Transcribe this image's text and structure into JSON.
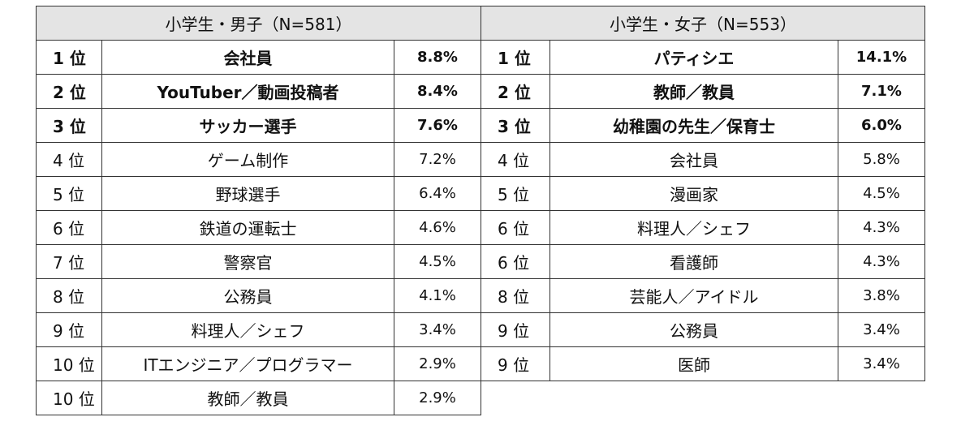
{
  "boys": {
    "header": "小学生・男子（N=581）",
    "rows": [
      {
        "rank": "1 位",
        "job": "会社員",
        "pct": "8.8%",
        "bold": true
      },
      {
        "rank": "2 位",
        "job": "YouTuber／動画投稿者",
        "pct": "8.4%",
        "bold": true
      },
      {
        "rank": "3 位",
        "job": "サッカー選手",
        "pct": "7.6%",
        "bold": true
      },
      {
        "rank": "4 位",
        "job": "ゲーム制作",
        "pct": "7.2%",
        "bold": false
      },
      {
        "rank": "5 位",
        "job": "野球選手",
        "pct": "6.4%",
        "bold": false
      },
      {
        "rank": "6 位",
        "job": "鉄道の運転士",
        "pct": "4.6%",
        "bold": false
      },
      {
        "rank": "7 位",
        "job": "警察官",
        "pct": "4.5%",
        "bold": false
      },
      {
        "rank": "8 位",
        "job": "公務員",
        "pct": "4.1%",
        "bold": false
      },
      {
        "rank": "9 位",
        "job": "料理人／シェフ",
        "pct": "3.4%",
        "bold": false
      },
      {
        "rank": "10 位",
        "job": "ITエンジニア／プログラマー",
        "pct": "2.9%",
        "bold": false
      },
      {
        "rank": "10 位",
        "job": "教師／教員",
        "pct": "2.9%",
        "bold": false
      }
    ]
  },
  "girls": {
    "header": "小学生・女子（N=553）",
    "rows": [
      {
        "rank": "1 位",
        "job": "パティシエ",
        "pct": "14.1%",
        "bold": true
      },
      {
        "rank": "2 位",
        "job": "教師／教員",
        "pct": "7.1%",
        "bold": true
      },
      {
        "rank": "3 位",
        "job": "幼稚園の先生／保育士",
        "pct": "6.0%",
        "bold": true
      },
      {
        "rank": "4 位",
        "job": "会社員",
        "pct": "5.8%",
        "bold": false
      },
      {
        "rank": "5 位",
        "job": "漫画家",
        "pct": "4.5%",
        "bold": false
      },
      {
        "rank": "6 位",
        "job": "料理人／シェフ",
        "pct": "4.3%",
        "bold": false
      },
      {
        "rank": "6 位",
        "job": "看護師",
        "pct": "4.3%",
        "bold": false
      },
      {
        "rank": "8 位",
        "job": "芸能人／アイドル",
        "pct": "3.8%",
        "bold": false
      },
      {
        "rank": "9 位",
        "job": "公務員",
        "pct": "3.4%",
        "bold": false
      },
      {
        "rank": "9 位",
        "job": "医師",
        "pct": "3.4%",
        "bold": false
      }
    ]
  }
}
